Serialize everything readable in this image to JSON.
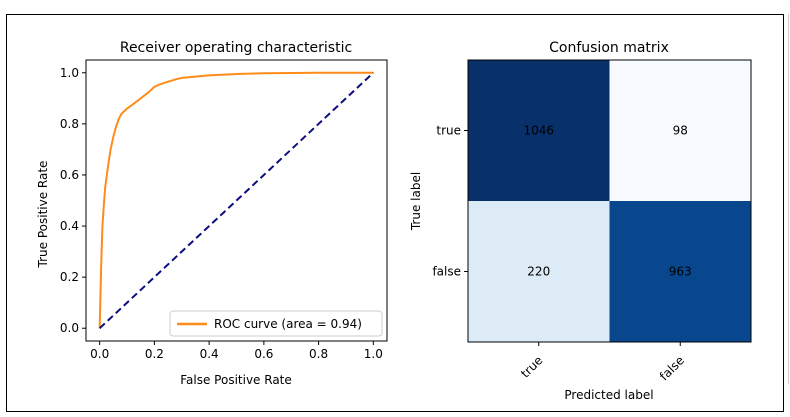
{
  "chart_data": [
    {
      "type": "line",
      "title": "Receiver operating characteristic",
      "xlabel": "False Positive Rate",
      "ylabel": "True Positive Rate",
      "xlim": [
        -0.05,
        1.05
      ],
      "ylim": [
        -0.05,
        1.05
      ],
      "xticks": [
        "0.0",
        "0.2",
        "0.4",
        "0.6",
        "0.8",
        "1.0"
      ],
      "yticks": [
        "0.0",
        "0.2",
        "0.4",
        "0.6",
        "0.8",
        "1.0"
      ],
      "legend_position": "lower right",
      "grid": false,
      "series": [
        {
          "name": "ROC curve (area = 0.94)",
          "color": "#ff8c1a",
          "x": [
            0.0,
            0.005,
            0.01,
            0.015,
            0.02,
            0.03,
            0.04,
            0.05,
            0.06,
            0.07,
            0.08,
            0.09,
            0.1,
            0.12,
            0.15,
            0.18,
            0.2,
            0.22,
            0.25,
            0.28,
            0.3,
            0.35,
            0.4,
            0.5,
            0.6,
            0.8,
            1.0
          ],
          "y": [
            0.0,
            0.23,
            0.4,
            0.48,
            0.55,
            0.63,
            0.7,
            0.75,
            0.79,
            0.82,
            0.84,
            0.85,
            0.86,
            0.875,
            0.9,
            0.925,
            0.945,
            0.955,
            0.965,
            0.975,
            0.98,
            0.985,
            0.99,
            0.995,
            0.998,
            1.0,
            1.0
          ]
        },
        {
          "name": "",
          "color": "#0d0d80",
          "dashed": true,
          "x": [
            0.0,
            1.0
          ],
          "y": [
            0.0,
            1.0
          ]
        }
      ]
    },
    {
      "type": "heatmap",
      "title": "Confusion matrix",
      "xlabel": "Predicted label",
      "ylabel": "True label",
      "x_categories": [
        "true",
        "false"
      ],
      "y_categories": [
        "true",
        "false"
      ],
      "values": [
        [
          1046,
          98
        ],
        [
          220,
          963
        ]
      ],
      "colormap": "Blues"
    }
  ]
}
